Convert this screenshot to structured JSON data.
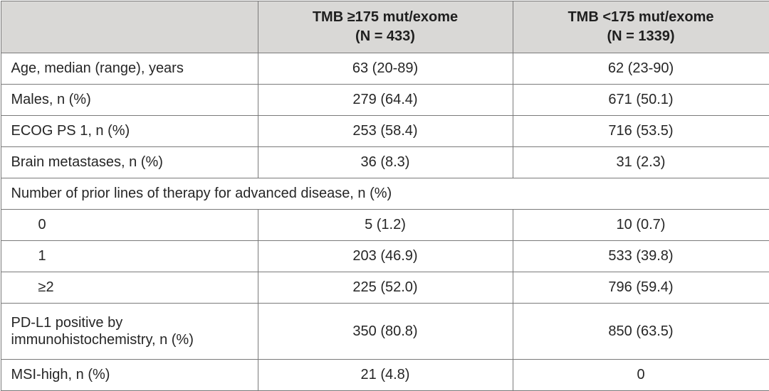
{
  "table": {
    "header": {
      "col1": "",
      "col2_line1": "TMB ≥175 mut/exome",
      "col2_line2": "(N = 433)",
      "col3_line1": "TMB <175 mut/exome",
      "col3_line2": "(N = 1339)"
    },
    "rows": [
      {
        "label": "Age, median (range), years",
        "high": "63 (20-89)",
        "low": "62 (23-90)"
      },
      {
        "label": "Males, n (%)",
        "high": "279 (64.4)",
        "low": "671 (50.1)"
      },
      {
        "label": "ECOG PS 1, n (%)",
        "high": "253 (58.4)",
        "low": "716 (53.5)"
      },
      {
        "label": "Brain metastases, n (%)",
        "high": "36 (8.3)",
        "low": "31 (2.3)"
      },
      {
        "label": "Number of prior lines of therapy for advanced disease, n (%)"
      },
      {
        "label": "0",
        "high": "5 (1.2)",
        "low": "10 (0.7)"
      },
      {
        "label": "1",
        "high": "203 (46.9)",
        "low": "533 (39.8)"
      },
      {
        "label": "≥2",
        "high": "225 (52.0)",
        "low": "796 (59.4)"
      },
      {
        "label_line1": "PD-L1 positive by",
        "label_line2": "immunohistochemistry, n (%)",
        "high": "350 (80.8)",
        "low": "850 (63.5)"
      },
      {
        "label": "MSI-high, n (%)",
        "high": "21 (4.8)",
        "low": "0"
      }
    ]
  },
  "colors": {
    "header_bg": "#d9d8d6",
    "border": "#7a7a7a",
    "text": "#262626"
  }
}
